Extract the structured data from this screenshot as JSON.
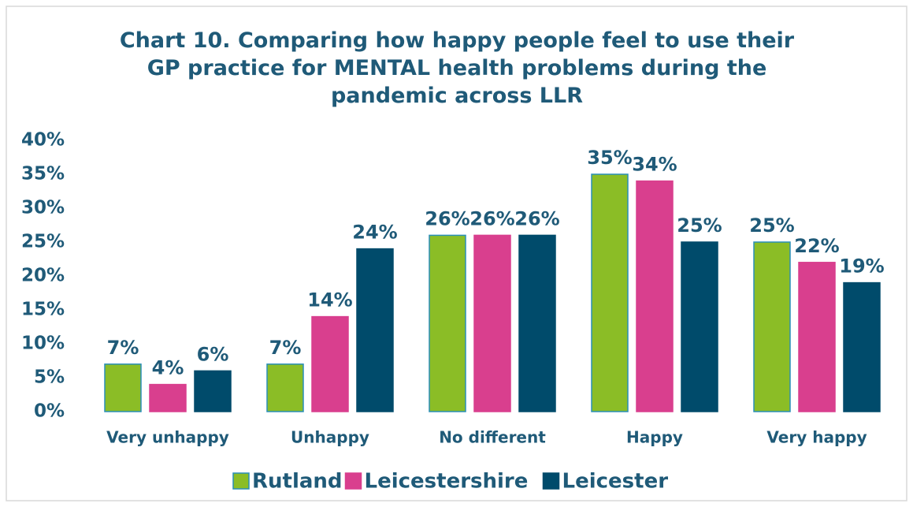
{
  "chart_data": {
    "type": "bar",
    "title": "Chart 10. Comparing how happy people feel to use their GP practice for MENTAL health problems during the pandemic across LLR",
    "categories": [
      "Very unhappy",
      "Unhappy",
      "No different",
      "Happy",
      "Very happy"
    ],
    "series": [
      {
        "name": "Rutland",
        "color": "#8bbd26",
        "values": [
          7,
          7,
          26,
          35,
          25
        ],
        "value_labels": [
          "7%",
          "7%",
          "26%",
          "35%",
          "25%"
        ]
      },
      {
        "name": "Leicestershire",
        "color": "#d93f8e",
        "values": [
          4,
          14,
          26,
          34,
          22
        ],
        "value_labels": [
          "4%",
          "14%",
          "26%",
          "34%",
          "22%"
        ]
      },
      {
        "name": "Leicester",
        "color": "#004b6b",
        "values": [
          6,
          24,
          26,
          25,
          19
        ],
        "value_labels": [
          "6%",
          "24%",
          "26%",
          "25%",
          "19%"
        ]
      }
    ],
    "ylim": [
      0,
      40
    ],
    "yticks": [
      {
        "value": 0,
        "label": "0%"
      },
      {
        "value": 5,
        "label": "5%"
      },
      {
        "value": 10,
        "label": "10%"
      },
      {
        "value": 15,
        "label": "15%"
      },
      {
        "value": 20,
        "label": "20%"
      },
      {
        "value": 25,
        "label": "25%"
      },
      {
        "value": 30,
        "label": "30%"
      },
      {
        "value": 35,
        "label": "35%"
      },
      {
        "value": 40,
        "label": "40%"
      }
    ],
    "grid": false,
    "legend": "bottom"
  }
}
